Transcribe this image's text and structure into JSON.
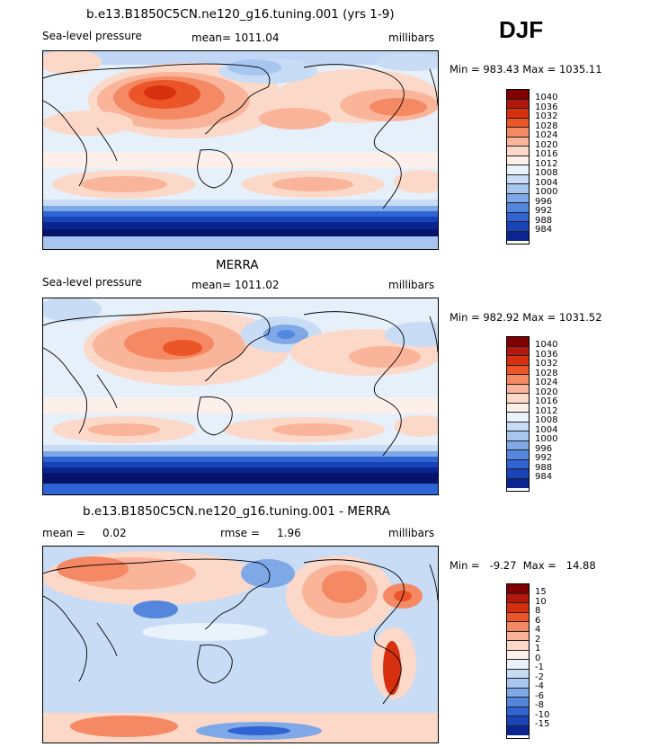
{
  "season": "DJF",
  "colors": {
    "slp_bins": [
      "#800000",
      "#b3180e",
      "#d7300f",
      "#ec5528",
      "#f48963",
      "#f9b49a",
      "#fcd8c8",
      "#fdf0ea",
      "#eaf3fc",
      "#c8dcf6",
      "#a6c6f0",
      "#7fa8e7",
      "#5586dd",
      "#2f64d2",
      "#1844b8",
      "#0a2591",
      "#05136b"
    ],
    "diff_bins": [
      "#800000",
      "#b3180e",
      "#d7300f",
      "#ec5528",
      "#f48963",
      "#f9b49a",
      "#fcd8c8",
      "#fdf0ea",
      "#eaf3fc",
      "#c8dcf6",
      "#a6c6f0",
      "#7fa8e7",
      "#5586dd",
      "#2f64d2",
      "#1844b8",
      "#0a2591",
      "#05136b"
    ]
  },
  "panel1": {
    "title": "b.e13.B1850C5CN.ne120_g16.tuning.001 (yrs 1-9)",
    "left": "Sea-level pressure",
    "mean": "mean= 1011.04",
    "units": "millibars",
    "minmax": "Min = 983.43  Max = 1035.11",
    "labels": [
      "1040",
      "1036",
      "1032",
      "1028",
      "1024",
      "1020",
      "1016",
      "1012",
      "1008",
      "1004",
      "1000",
      "996",
      "992",
      "988",
      "984"
    ]
  },
  "panel2": {
    "title": "MERRA",
    "left": "Sea-level pressure",
    "mean": "mean= 1011.02",
    "units": "millibars",
    "minmax": "Min = 982.92  Max = 1031.52",
    "labels": [
      "1040",
      "1036",
      "1032",
      "1028",
      "1024",
      "1020",
      "1016",
      "1012",
      "1008",
      "1004",
      "1000",
      "996",
      "992",
      "988",
      "984"
    ]
  },
  "panel3": {
    "title": "b.e13.B1850C5CN.ne120_g16.tuning.001 - MERRA",
    "left": "mean =     0.02",
    "mid": "rmse =     1.96",
    "units": "millibars",
    "minmax": "Min =   -9.27  Max =   14.88",
    "labels": [
      "15",
      "10",
      "8",
      "6",
      "4",
      "2",
      "1",
      "0",
      "-1",
      "-2",
      "-4",
      "-6",
      "-8",
      "-10",
      "-15"
    ]
  }
}
